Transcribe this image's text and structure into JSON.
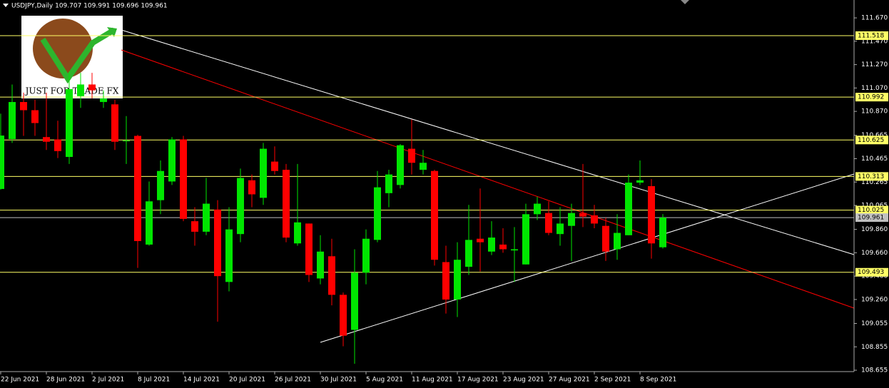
{
  "chart_data": {
    "type": "candlestick",
    "title": "USDJPY,Daily  109.707 109.991 109.696 109.961",
    "logo_text": "JUST FOR TRADE FX",
    "categories": [
      "22 Jun 2021",
      null,
      null,
      null,
      "28 Jun 2021",
      null,
      null,
      null,
      "2 Jul 2021",
      null,
      null,
      null,
      "8 Jul 2021",
      null,
      null,
      null,
      "14 Jul 2021",
      null,
      null,
      null,
      "20 Jul 2021",
      null,
      null,
      null,
      "26 Jul 2021",
      null,
      null,
      null,
      "30 Jul 2021",
      null,
      null,
      null,
      "5 Aug 2021",
      null,
      null,
      null,
      "11 Aug 2021",
      null,
      null,
      null,
      "17 Aug 2021",
      null,
      null,
      null,
      "23 Aug 2021",
      null,
      null,
      null,
      "27 Aug 2021",
      null,
      null,
      null,
      "2 Sep 2021",
      null,
      null,
      null,
      "8 Sep 2021",
      null,
      null
    ],
    "open": [
      110.206,
      110.633,
      110.95,
      110.88,
      110.65,
      110.63,
      110.48,
      111.0,
      111.1,
      110.95,
      110.93,
      110.62,
      110.66,
      109.73,
      110.11,
      110.27,
      110.63,
      109.93,
      109.84,
      110.03,
      109.41,
      109.82,
      110.28,
      110.13,
      110.44,
      110.37,
      109.74,
      109.91,
      109.44,
      109.63,
      109.3,
      109.0,
      109.49,
      109.77,
      110.17,
      110.24,
      110.55,
      110.37,
      110.36,
      109.58,
      109.26,
      109.54,
      109.78,
      109.67,
      109.73,
      109.68,
      109.56,
      109.99,
      110.0,
      109.82,
      109.89,
      110.0,
      109.98,
      109.89,
      109.69,
      109.81,
      110.26,
      110.23,
      109.707
    ],
    "high": [
      110.85,
      111.1,
      111.03,
      110.97,
      111.03,
      110.79,
      111.21,
      111.2,
      111.2,
      111.05,
      110.97,
      110.83,
      110.67,
      110.27,
      110.45,
      110.65,
      110.66,
      110.05,
      110.3,
      110.11,
      110.05,
      110.38,
      110.33,
      110.6,
      110.57,
      110.42,
      110.42,
      109.91,
      109.81,
      109.78,
      109.32,
      109.69,
      109.86,
      110.36,
      110.37,
      110.59,
      110.8,
      110.54,
      110.37,
      109.72,
      109.75,
      110.07,
      110.21,
      109.93,
      109.87,
      109.88,
      110.08,
      110.14,
      110.1,
      110.05,
      110.08,
      110.42,
      110.07,
      109.96,
      109.99,
      110.33,
      110.45,
      110.29,
      109.991
    ],
    "low": [
      110.2,
      110.6,
      110.66,
      110.66,
      110.54,
      110.47,
      110.42,
      110.9,
      110.98,
      110.9,
      110.54,
      110.42,
      109.53,
      109.72,
      109.99,
      110.24,
      109.93,
      109.72,
      109.81,
      109.07,
      109.33,
      109.75,
      110.05,
      110.07,
      110.33,
      109.75,
      109.72,
      109.41,
      109.39,
      109.21,
      108.86,
      108.71,
      109.39,
      109.75,
      110.05,
      110.21,
      110.33,
      110.33,
      109.55,
      109.14,
      109.11,
      109.47,
      109.5,
      109.64,
      109.66,
      109.41,
      109.56,
      109.94,
      109.81,
      109.72,
      109.59,
      109.88,
      109.87,
      109.59,
      109.6,
      109.81,
      110.24,
      109.61,
      109.696
    ],
    "close": [
      110.663,
      110.95,
      110.88,
      110.77,
      110.61,
      110.53,
      111.06,
      111.1,
      111.05,
      110.98,
      110.61,
      110.62,
      109.76,
      110.1,
      110.36,
      110.63,
      109.95,
      109.84,
      110.08,
      109.46,
      109.86,
      110.3,
      110.16,
      110.55,
      110.36,
      109.79,
      109.92,
      109.47,
      109.67,
      109.3,
      108.95,
      109.49,
      109.78,
      110.22,
      110.33,
      110.58,
      110.43,
      110.43,
      109.6,
      109.26,
      109.6,
      109.77,
      109.75,
      109.79,
      109.69,
      109.69,
      109.99,
      110.08,
      109.83,
      109.91,
      110.0,
      109.97,
      109.91,
      109.67,
      109.83,
      110.26,
      110.28,
      109.74,
      109.961
    ],
    "up_color": "#00e600",
    "down_color": "#ff0000",
    "background": "#000000",
    "ylim": [
      108.643,
      111.823
    ],
    "yticks": [
      {
        "value": 111.67,
        "label": "111.670"
      },
      {
        "value": 111.47,
        "label": "111.470"
      },
      {
        "value": 111.27,
        "label": "111.270"
      },
      {
        "value": 111.07,
        "label": "111.070"
      },
      {
        "value": 110.87,
        "label": "110.870"
      },
      110.665,
      110.465,
      110.265,
      110.065,
      {
        "value": 109.86,
        "label": "109.860"
      },
      {
        "value": 109.66,
        "label": "109.660"
      },
      {
        "value": 109.46,
        "label": "109.460"
      },
      {
        "value": 109.26,
        "label": "109.260"
      },
      109.055,
      108.855,
      108.655
    ],
    "levels": [
      {
        "value": 111.518,
        "color": "#ffff66"
      },
      {
        "value": 110.992,
        "color": "#ffff66"
      },
      {
        "value": 110.625,
        "color": "#ffff66"
      },
      {
        "value": 110.313,
        "color": "#ffff66"
      },
      {
        "value": 110.025,
        "color": "#ffff66"
      },
      {
        "value": 109.961,
        "color": "#c0c0c0"
      },
      {
        "value": 109.493,
        "color": "#ffff66"
      }
    ]
  }
}
